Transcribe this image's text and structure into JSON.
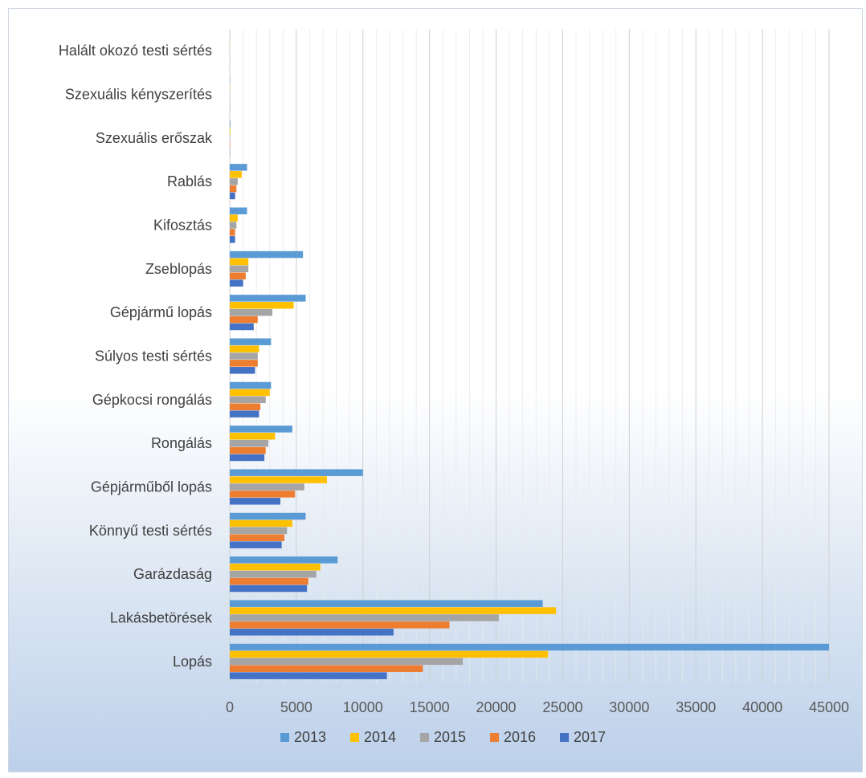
{
  "chart_data": {
    "type": "bar",
    "orientation": "horizontal",
    "categories": [
      "Lopás",
      "Lakásbetörések",
      "Garázdaság",
      "Könnyű testi sértés",
      "Gépjárműből lopás",
      "Rongálás",
      "Gépkocsi rongálás",
      "Súlyos testi sértés",
      "Gépjármű lopás",
      "Zseblopás",
      "Kifosztás",
      "Rablás",
      "Szexuális erőszak",
      "Szexuális kényszerítés",
      "Halált okozó testi sértés"
    ],
    "series": [
      {
        "name": "2013",
        "color": "#5b9bd5",
        "values": [
          45000,
          23500,
          8100,
          5700,
          10000,
          4700,
          3100,
          3100,
          5700,
          5500,
          1300,
          1300,
          50,
          20,
          10
        ]
      },
      {
        "name": "2014",
        "color": "#ffc000",
        "values": [
          23900,
          24500,
          6800,
          4700,
          7300,
          3400,
          3000,
          2200,
          4800,
          1400,
          600,
          900,
          40,
          15,
          8
        ]
      },
      {
        "name": "2015",
        "color": "#a5a5a5",
        "values": [
          17500,
          20200,
          6500,
          4300,
          5600,
          2900,
          2700,
          2100,
          3200,
          1400,
          500,
          600,
          30,
          10,
          6
        ]
      },
      {
        "name": "2016",
        "color": "#ed7d31",
        "values": [
          14500,
          16500,
          5900,
          4100,
          4900,
          2700,
          2300,
          2100,
          2100,
          1200,
          400,
          500,
          30,
          10,
          5
        ]
      },
      {
        "name": "2017",
        "color": "#4472c4",
        "values": [
          11800,
          12300,
          5800,
          3900,
          3800,
          2600,
          2200,
          1900,
          1800,
          1000,
          400,
          400,
          20,
          10,
          5
        ]
      }
    ],
    "xlim": [
      0,
      45000
    ],
    "xticks": [
      "0",
      "5000",
      "10000",
      "15000",
      "20000",
      "25000",
      "30000",
      "35000",
      "40000",
      "45000"
    ],
    "grid": true,
    "legend_position": "bottom"
  }
}
